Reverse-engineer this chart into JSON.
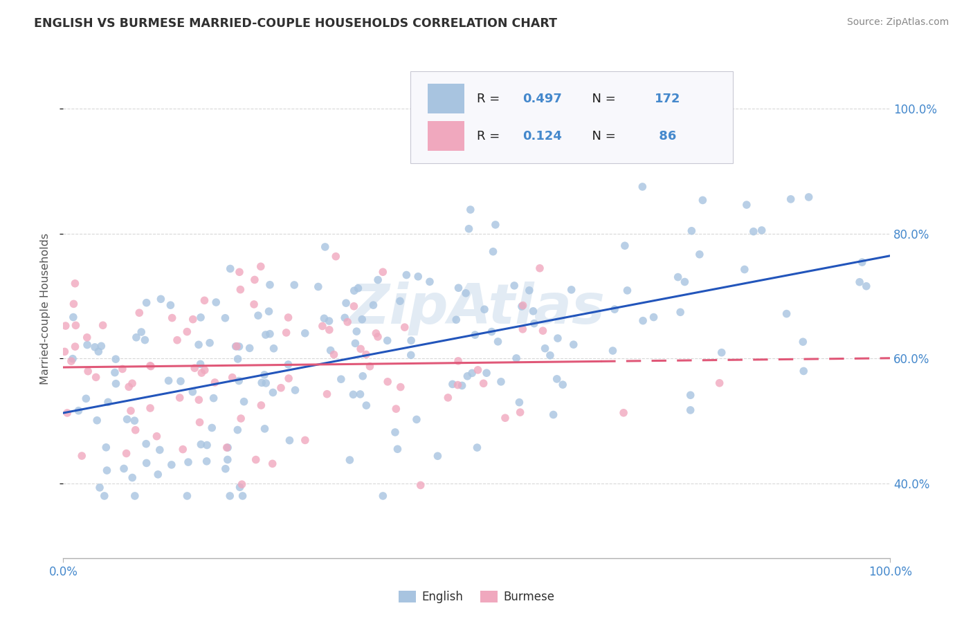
{
  "title": "ENGLISH VS BURMESE MARRIED-COUPLE HOUSEHOLDS CORRELATION CHART",
  "source": "Source: ZipAtlas.com",
  "ylabel": "Married-couple Households",
  "english_R": "0.497",
  "english_N": "172",
  "burmese_R": "0.124",
  "burmese_N": "86",
  "english_color": "#a8c4e0",
  "burmese_color": "#f0a8be",
  "english_line_color": "#2255bb",
  "burmese_line_color": "#e05878",
  "watermark": "ZipAtlas",
  "background_color": "#ffffff",
  "title_color": "#303030",
  "axis_label_color": "#4488cc",
  "ytick_labels": [
    "40.0%",
    "60.0%",
    "80.0%",
    "100.0%"
  ],
  "ytick_values": [
    0.4,
    0.6,
    0.8,
    1.0
  ],
  "xlim": [
    0.0,
    1.0
  ],
  "ylim": [
    0.28,
    1.08
  ]
}
